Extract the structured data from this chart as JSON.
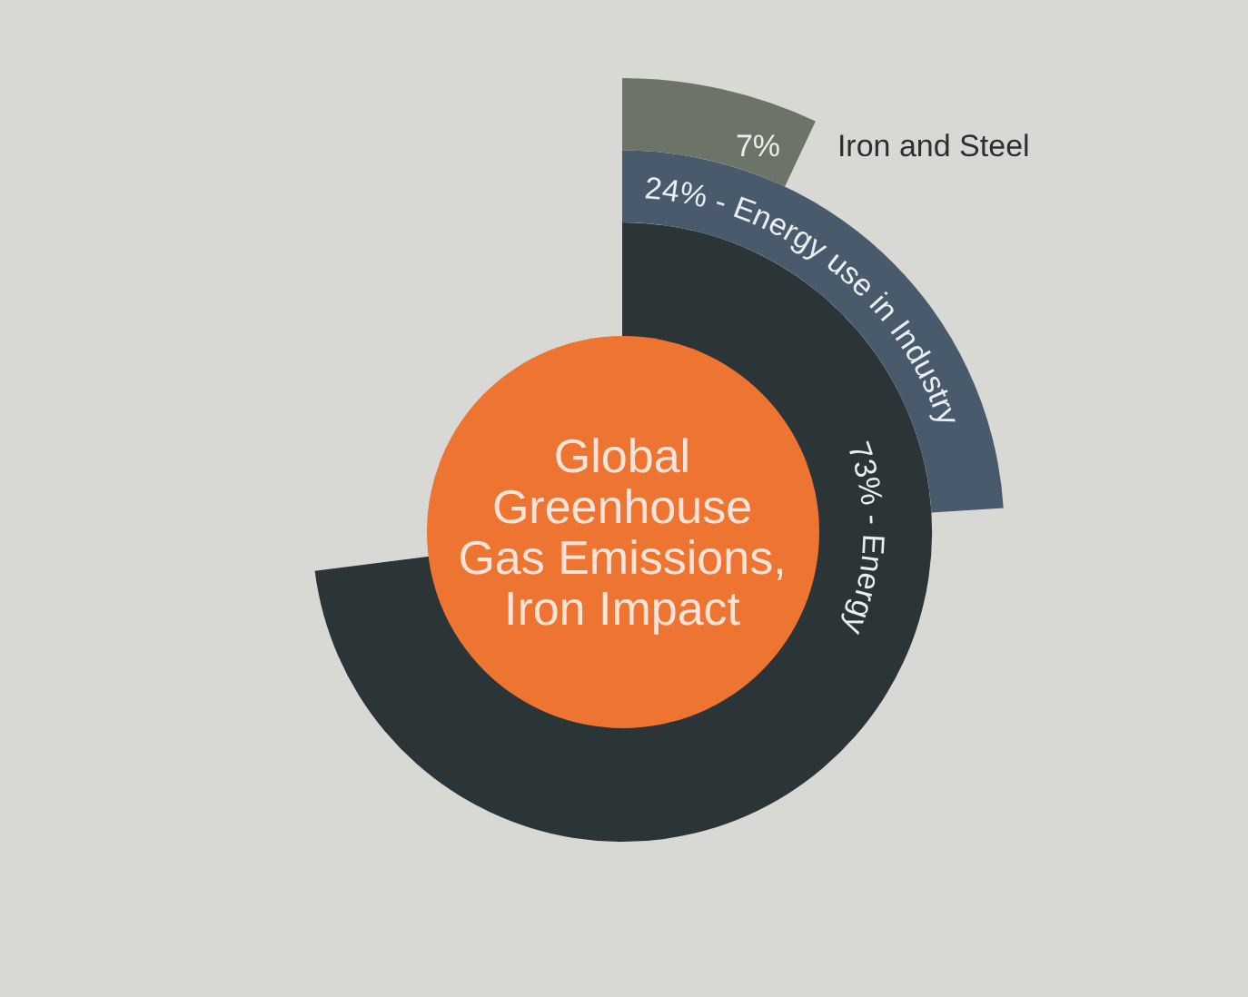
{
  "chart_data": {
    "type": "other",
    "title": "Global Greenhouse Gas Emissions, Iron Impact",
    "categories": [
      "Iron and Steel",
      "Energy use in Industry",
      "Energy"
    ],
    "values": [
      7,
      24,
      73
    ],
    "colors": [
      "#6b7466",
      "#485a6b",
      "#2b3537"
    ],
    "value_labels": [
      "7%",
      "24% -",
      "73% -"
    ]
  }
}
